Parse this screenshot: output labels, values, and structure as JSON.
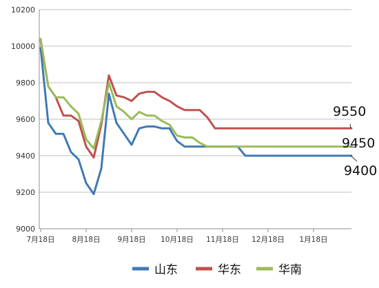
{
  "chart_data": {
    "type": "line",
    "x_start": "7月18日",
    "x_tick_labels": [
      "7月18日",
      "8月18日",
      "9月18日",
      "10月18日",
      "11月18日",
      "12月18日",
      "1月18日"
    ],
    "x_index_of_ticks": [
      0,
      6,
      12,
      18,
      24,
      30,
      36
    ],
    "ylim": [
      9000,
      10200
    ],
    "y_ticks": [
      9000,
      9200,
      9400,
      9600,
      9800,
      10000,
      10200
    ],
    "grid": true,
    "legend_position": "bottom",
    "series": [
      {
        "name": "山东",
        "color": "#3f79b5",
        "values": [
          9990,
          9580,
          9520,
          9520,
          9420,
          9380,
          9250,
          9190,
          9330,
          9740,
          9580,
          9520,
          9460,
          9550,
          9560,
          9560,
          9550,
          9550,
          9480,
          9450,
          9450,
          9450,
          9450,
          9450,
          9450,
          9450,
          9450,
          9400,
          9400,
          9400,
          9400,
          9400,
          9400,
          9400,
          9400,
          9400,
          9400,
          9400,
          9400,
          9400,
          9400,
          9400
        ]
      },
      {
        "name": "华东",
        "color": "#c0504d",
        "values": [
          10030,
          9780,
          9720,
          9620,
          9620,
          9590,
          9450,
          9390,
          9570,
          9840,
          9730,
          9720,
          9700,
          9740,
          9750,
          9750,
          9720,
          9700,
          9670,
          9650,
          9650,
          9650,
          9610,
          9550,
          9550,
          9550,
          9550,
          9550,
          9550,
          9550,
          9550,
          9550,
          9550,
          9550,
          9550,
          9550,
          9550,
          9550,
          9550,
          9550,
          9550,
          9550
        ]
      },
      {
        "name": "华南",
        "color": "#9bbb59",
        "values": [
          10040,
          9780,
          9720,
          9720,
          9670,
          9630,
          9490,
          9440,
          9590,
          9800,
          9670,
          9640,
          9600,
          9640,
          9620,
          9620,
          9590,
          9570,
          9510,
          9500,
          9500,
          9470,
          9450,
          9450,
          9450,
          9450,
          9450,
          9450,
          9450,
          9450,
          9450,
          9450,
          9450,
          9450,
          9450,
          9450,
          9450,
          9450,
          9450,
          9450,
          9450,
          9450
        ]
      }
    ],
    "annotations": [
      "9550",
      "9450",
      "9400"
    ]
  }
}
